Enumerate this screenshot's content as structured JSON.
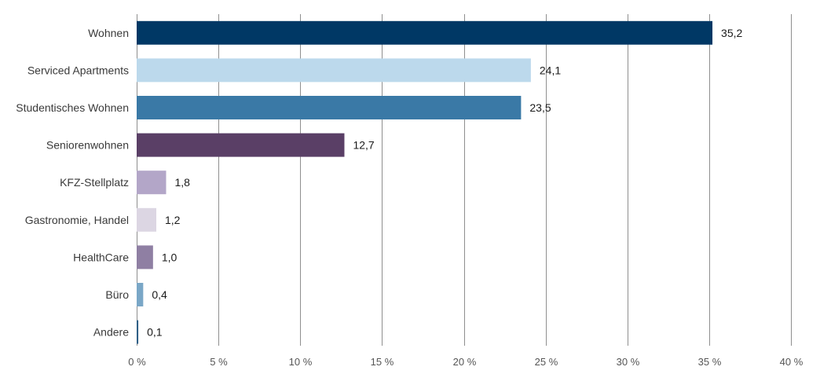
{
  "chart_data": {
    "type": "bar",
    "orientation": "horizontal",
    "title": "",
    "xlabel": "",
    "ylabel": "",
    "categories": [
      "Wohnen",
      "Serviced Apartments",
      "Studentisches Wohnen",
      "Seniorenwohnen",
      "KFZ-Stellplatz",
      "Gastronomie, Handel",
      "HealthCare",
      "Büro",
      "Andere"
    ],
    "values": [
      35.2,
      24.1,
      23.5,
      12.7,
      1.8,
      1.2,
      1.0,
      0.4,
      0.1
    ],
    "value_labels": [
      "35,2",
      "24,1",
      "23,5",
      "12,7",
      "1,8",
      "1,2",
      "1,0",
      "0,4",
      "0,1"
    ],
    "colors": [
      "#003865",
      "#bcd9ec",
      "#3a79a6",
      "#5a3f66",
      "#b3a6c8",
      "#dcd6e3",
      "#8f7fa3",
      "#7aa7c7",
      "#2f5f86"
    ],
    "xlim": [
      0,
      40
    ],
    "xticks": [
      0,
      5,
      10,
      15,
      20,
      25,
      30,
      35,
      40
    ],
    "xtick_labels": [
      "0 %",
      "5 %",
      "10 %",
      "15 %",
      "20 %",
      "25 %",
      "30 %",
      "35 %",
      "40 %"
    ],
    "grid": true,
    "legend": "none"
  }
}
